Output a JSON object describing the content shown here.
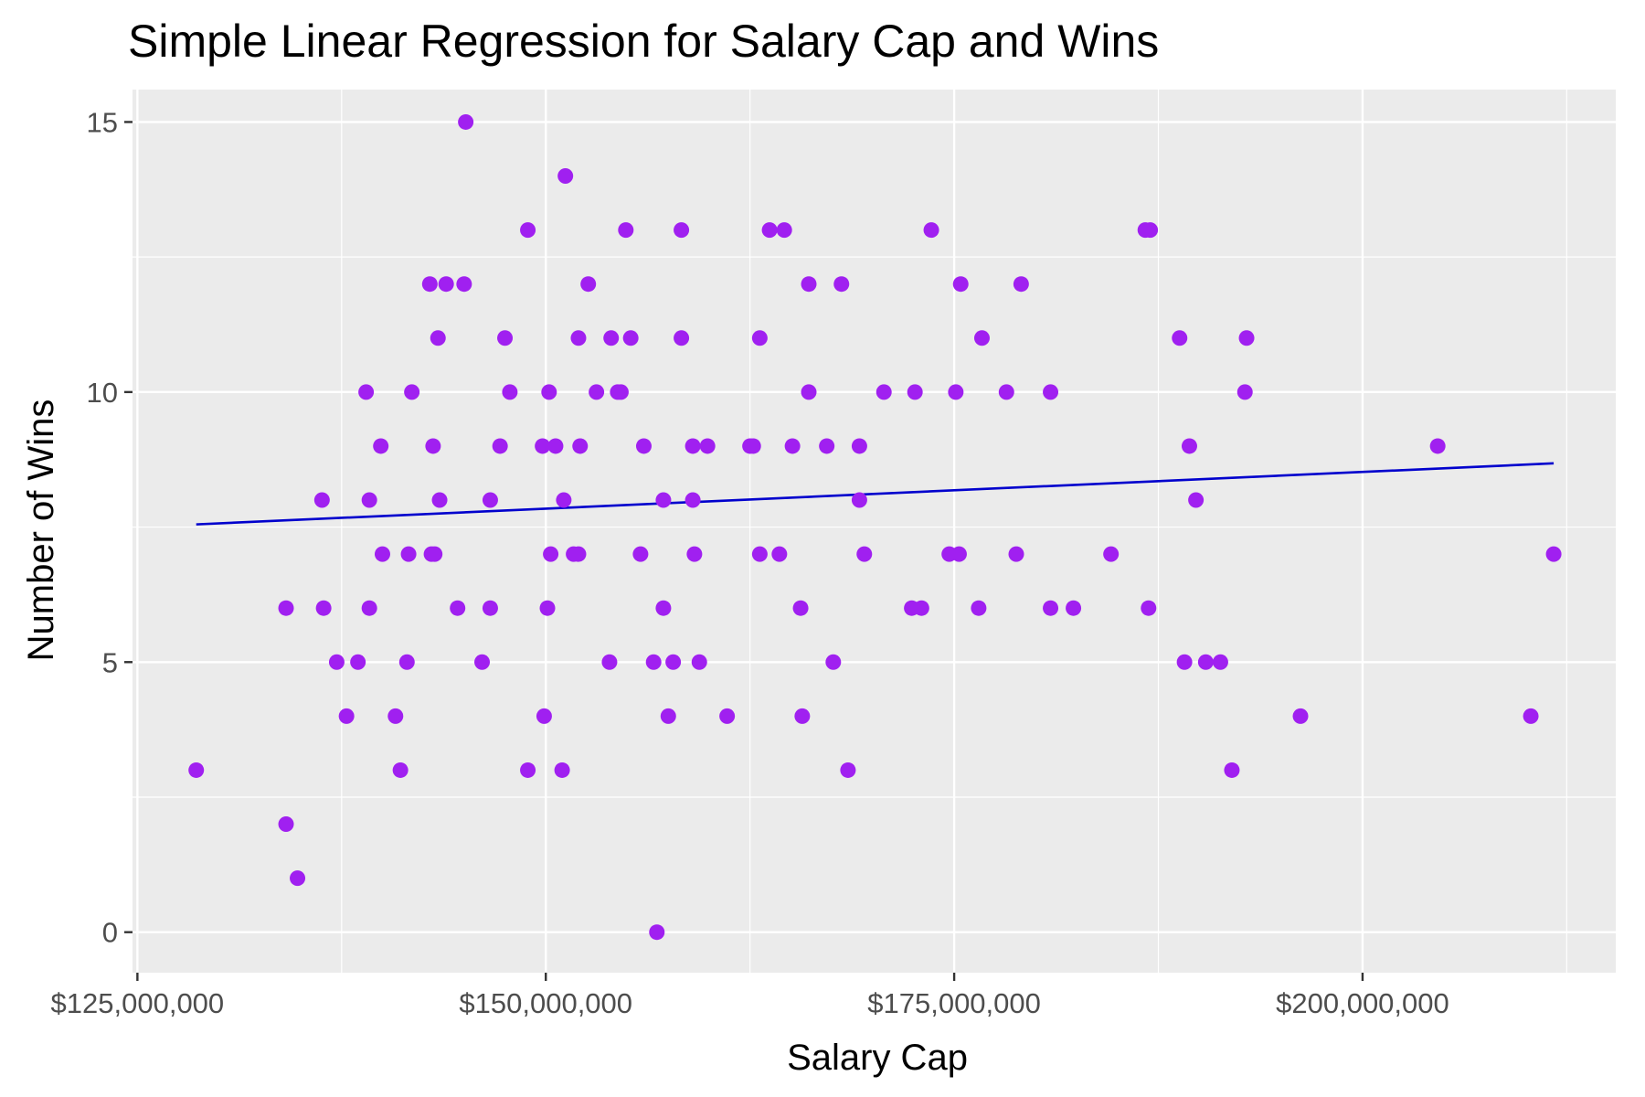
{
  "chart_data": {
    "type": "scatter",
    "title": "Simple Linear Regression for Salary Cap and Wins",
    "xlabel": "Salary Cap",
    "ylabel": "Number of Wins",
    "xlim": [
      124700000,
      215500000
    ],
    "ylim": [
      -0.75,
      15.6
    ],
    "x_ticks": [
      125000000,
      150000000,
      175000000,
      200000000
    ],
    "x_tick_labels": [
      "$125,000,000",
      "$150,000,000",
      "$175,000,000",
      "$200,000,000"
    ],
    "y_ticks": [
      0,
      5,
      10,
      15
    ],
    "y_tick_labels": [
      "0",
      "5",
      "10",
      "15"
    ],
    "grid": true,
    "legend": "none",
    "point_color": "#a020f0",
    "line_color": "#0000cd",
    "panel_color": "#ebebeb",
    "points": [
      [
        128600000,
        3
      ],
      [
        134100000,
        6
      ],
      [
        134100000,
        2
      ],
      [
        134800000,
        1
      ],
      [
        136300000,
        8
      ],
      [
        136400000,
        6
      ],
      [
        137200000,
        5
      ],
      [
        137800000,
        4
      ],
      [
        138500000,
        5
      ],
      [
        139000000,
        10
      ],
      [
        139200000,
        8
      ],
      [
        139200000,
        6
      ],
      [
        139900000,
        9
      ],
      [
        140000000,
        7
      ],
      [
        140800000,
        4
      ],
      [
        141100000,
        3
      ],
      [
        141500000,
        5
      ],
      [
        141600000,
        7
      ],
      [
        141800000,
        10
      ],
      [
        142900000,
        12
      ],
      [
        143000000,
        7
      ],
      [
        143100000,
        9
      ],
      [
        143200000,
        7
      ],
      [
        143400000,
        11
      ],
      [
        143500000,
        8
      ],
      [
        143900000,
        12
      ],
      [
        144600000,
        6
      ],
      [
        145000000,
        12
      ],
      [
        145100000,
        15
      ],
      [
        146100000,
        5
      ],
      [
        146600000,
        8
      ],
      [
        146600000,
        6
      ],
      [
        147200000,
        9
      ],
      [
        147500000,
        11
      ],
      [
        147800000,
        10
      ],
      [
        148900000,
        13
      ],
      [
        148900000,
        3
      ],
      [
        149800000,
        9
      ],
      [
        149900000,
        4
      ],
      [
        150100000,
        6
      ],
      [
        150200000,
        10
      ],
      [
        150300000,
        7
      ],
      [
        150600000,
        9
      ],
      [
        151000000,
        3
      ],
      [
        151100000,
        8
      ],
      [
        151200000,
        14
      ],
      [
        151700000,
        7
      ],
      [
        152000000,
        11
      ],
      [
        152000000,
        7
      ],
      [
        152100000,
        9
      ],
      [
        152600000,
        12
      ],
      [
        153100000,
        10
      ],
      [
        153900000,
        5
      ],
      [
        154000000,
        11
      ],
      [
        154400000,
        10
      ],
      [
        154600000,
        10
      ],
      [
        154900000,
        13
      ],
      [
        155200000,
        11
      ],
      [
        155800000,
        7
      ],
      [
        156000000,
        9
      ],
      [
        156600000,
        5
      ],
      [
        156800000,
        0
      ],
      [
        157200000,
        8
      ],
      [
        157200000,
        6
      ],
      [
        157500000,
        4
      ],
      [
        157800000,
        5
      ],
      [
        158300000,
        13
      ],
      [
        158300000,
        11
      ],
      [
        159000000,
        9
      ],
      [
        159000000,
        8
      ],
      [
        159100000,
        7
      ],
      [
        159400000,
        5
      ],
      [
        159900000,
        9
      ],
      [
        161100000,
        4
      ],
      [
        162500000,
        9
      ],
      [
        162700000,
        9
      ],
      [
        163100000,
        7
      ],
      [
        163100000,
        11
      ],
      [
        163700000,
        13
      ],
      [
        164300000,
        7
      ],
      [
        164600000,
        13
      ],
      [
        165100000,
        9
      ],
      [
        165600000,
        6
      ],
      [
        165700000,
        4
      ],
      [
        166100000,
        12
      ],
      [
        166100000,
        10
      ],
      [
        167200000,
        9
      ],
      [
        167600000,
        5
      ],
      [
        168100000,
        12
      ],
      [
        168500000,
        3
      ],
      [
        169200000,
        9
      ],
      [
        169200000,
        8
      ],
      [
        169500000,
        7
      ],
      [
        170700000,
        10
      ],
      [
        172400000,
        6
      ],
      [
        172600000,
        10
      ],
      [
        173000000,
        6
      ],
      [
        173600000,
        13
      ],
      [
        174700000,
        7
      ],
      [
        175100000,
        10
      ],
      [
        175300000,
        7
      ],
      [
        175400000,
        12
      ],
      [
        176500000,
        6
      ],
      [
        176700000,
        11
      ],
      [
        178200000,
        10
      ],
      [
        178800000,
        7
      ],
      [
        179100000,
        12
      ],
      [
        180900000,
        10
      ],
      [
        180900000,
        6
      ],
      [
        182300000,
        6
      ],
      [
        184600000,
        7
      ],
      [
        186700000,
        13
      ],
      [
        187000000,
        13
      ],
      [
        186900000,
        6
      ],
      [
        188800000,
        11
      ],
      [
        189100000,
        5
      ],
      [
        189400000,
        9
      ],
      [
        189800000,
        8
      ],
      [
        190400000,
        5
      ],
      [
        191300000,
        5
      ],
      [
        192000000,
        3
      ],
      [
        192800000,
        10
      ],
      [
        192900000,
        11
      ],
      [
        196200000,
        4
      ],
      [
        204600000,
        9
      ],
      [
        210300000,
        4
      ],
      [
        211700000,
        7
      ]
    ],
    "regression_line": {
      "x": [
        128600000,
        211700000
      ],
      "y": [
        7.55,
        8.68
      ]
    }
  }
}
